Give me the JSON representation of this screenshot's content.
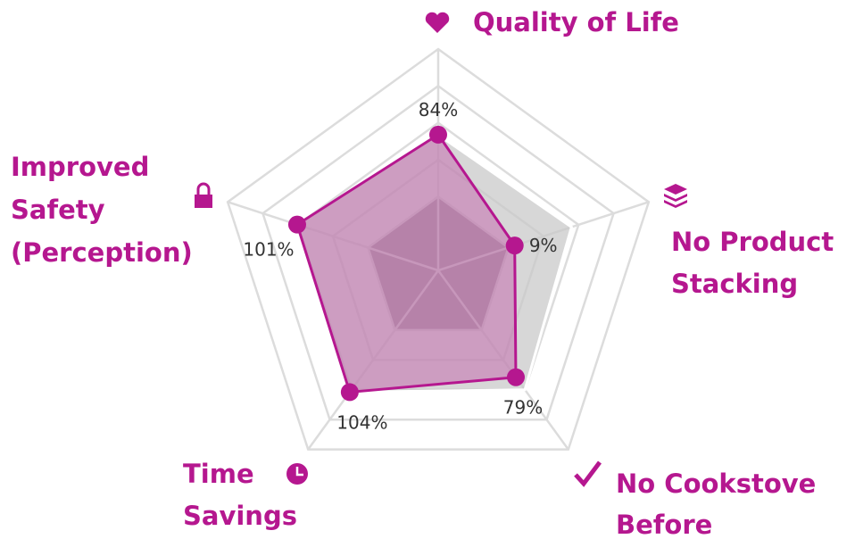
{
  "chart_data": {
    "type": "radar",
    "categories": [
      "Quality of Life",
      "No Product\nStacking",
      "No Cookstove\nBefore",
      "Time\nSavings",
      "Improved\nSafety\n(Perception)"
    ],
    "series": [
      {
        "color": "#c9c9c9",
        "values": [
          84,
          90,
          100,
          104,
          101
        ]
      },
      {
        "color": "#b5178f",
        "values": [
          84,
          9,
          79,
          104,
          101
        ],
        "value_labels": [
          "84%",
          "9%",
          "79%",
          "104%",
          "101%"
        ]
      }
    ],
    "rlim": [
      -100,
      200
    ],
    "rticks": [
      0,
      50,
      100,
      150,
      200
    ],
    "grid": true
  }
}
